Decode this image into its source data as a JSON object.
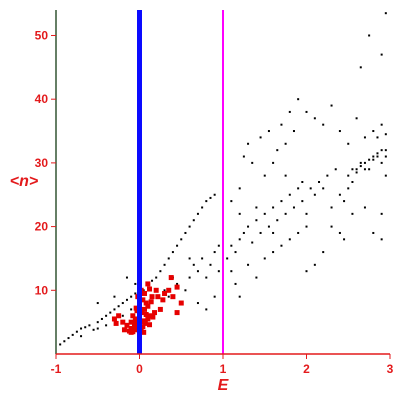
{
  "chart_data": {
    "type": "scatter",
    "title": "",
    "xlabel": "E",
    "ylabel": "<n>",
    "xlim": [
      -1,
      3
    ],
    "ylim": [
      0,
      54
    ],
    "x_ticks": [
      "-1",
      "0",
      "1",
      "2",
      "3"
    ],
    "y_ticks": [
      "10",
      "20",
      "30",
      "40",
      "50"
    ],
    "grid": false,
    "colors": {
      "black_points": "#000000",
      "red_points": "#e60000",
      "line_at_0": "#0a0aff",
      "line_at_1": "#ff00ff",
      "axes": "#e31a1c",
      "y_axis_line": "#335533"
    },
    "vertical_lines": [
      {
        "x": 0,
        "color": "#0a0aff"
      },
      {
        "x": 1,
        "color": "#ff00ff"
      }
    ],
    "series": [
      {
        "marker": "dot",
        "color": "#000000",
        "points": [
          [
            -0.95,
            1.5
          ],
          [
            -0.9,
            2.0
          ],
          [
            -0.85,
            2.5
          ],
          [
            -0.8,
            3.0
          ],
          [
            -0.75,
            3.5
          ],
          [
            -0.7,
            2.8
          ],
          [
            -0.7,
            4.0
          ],
          [
            -0.65,
            4.2
          ],
          [
            -0.6,
            4.5
          ],
          [
            -0.55,
            3.8
          ],
          [
            -0.5,
            5.0
          ],
          [
            -0.5,
            4.0
          ],
          [
            -0.45,
            5.5
          ],
          [
            -0.4,
            6.0
          ],
          [
            -0.4,
            4.5
          ],
          [
            -0.35,
            6.5
          ],
          [
            -0.3,
            5.5
          ],
          [
            -0.3,
            7.0
          ],
          [
            -0.25,
            7.5
          ],
          [
            -0.2,
            6.0
          ],
          [
            -0.2,
            8.0
          ],
          [
            -0.15,
            8.5
          ],
          [
            -0.1,
            9.0
          ],
          [
            -0.1,
            7.0
          ],
          [
            -0.05,
            9.5
          ],
          [
            -0.05,
            11.0
          ],
          [
            0.0,
            10.5
          ],
          [
            -0.3,
            9.0
          ],
          [
            -0.5,
            8.0
          ],
          [
            -0.15,
            12.0
          ],
          [
            0.05,
            10.0
          ],
          [
            0.1,
            11.0
          ],
          [
            0.15,
            11.5
          ],
          [
            0.2,
            12.0
          ],
          [
            0.25,
            13.0
          ],
          [
            0.3,
            14.0
          ],
          [
            0.35,
            15.0
          ],
          [
            0.4,
            16.0
          ],
          [
            0.45,
            17.0
          ],
          [
            0.5,
            18.0
          ],
          [
            0.55,
            19.0
          ],
          [
            0.6,
            20.0
          ],
          [
            0.65,
            21.0
          ],
          [
            0.7,
            22.0
          ],
          [
            0.75,
            23.0
          ],
          [
            0.8,
            24.0
          ],
          [
            0.85,
            24.5
          ],
          [
            0.9,
            25.0
          ],
          [
            0.3,
            10.0
          ],
          [
            0.35,
            9.0
          ],
          [
            0.4,
            12.0
          ],
          [
            0.45,
            11.0
          ],
          [
            0.5,
            8.0
          ],
          [
            0.55,
            10.0
          ],
          [
            0.6,
            12.0
          ],
          [
            0.65,
            14.0
          ],
          [
            0.7,
            13.0
          ],
          [
            0.75,
            15.0
          ],
          [
            0.8,
            12.0
          ],
          [
            0.85,
            14.0
          ],
          [
            0.9,
            16.0
          ],
          [
            0.95,
            17.0
          ],
          [
            1.0,
            18.0
          ],
          [
            0.7,
            8.0
          ],
          [
            0.8,
            7.0
          ],
          [
            0.9,
            9.0
          ],
          [
            0.6,
            15.0
          ],
          [
            0.95,
            13.0
          ],
          [
            1.05,
            15.0
          ],
          [
            1.1,
            17.0
          ],
          [
            1.15,
            16.0
          ],
          [
            1.2,
            18.0
          ],
          [
            1.25,
            19.0
          ],
          [
            1.3,
            20.0
          ],
          [
            1.35,
            17.5
          ],
          [
            1.4,
            21.0
          ],
          [
            1.45,
            19.0
          ],
          [
            1.5,
            22.0
          ],
          [
            1.55,
            20.0
          ],
          [
            1.6,
            23.0
          ],
          [
            1.65,
            21.0
          ],
          [
            1.7,
            24.0
          ],
          [
            1.75,
            22.0
          ],
          [
            1.8,
            25.0
          ],
          [
            1.85,
            23.0
          ],
          [
            1.9,
            26.0
          ],
          [
            1.95,
            24.0
          ],
          [
            2.0,
            22.0
          ],
          [
            1.1,
            13.0
          ],
          [
            1.15,
            11.0
          ],
          [
            1.2,
            9.0
          ],
          [
            1.3,
            14.0
          ],
          [
            1.4,
            12.0
          ],
          [
            1.5,
            15.0
          ],
          [
            1.6,
            16.0
          ],
          [
            1.7,
            17.0
          ],
          [
            1.8,
            18.0
          ],
          [
            1.9,
            19.0
          ],
          [
            2.0,
            20.0
          ],
          [
            2.05,
            26.0
          ],
          [
            2.1,
            25.0
          ],
          [
            2.15,
            27.0
          ],
          [
            2.2,
            26.0
          ],
          [
            2.25,
            28.0
          ],
          [
            2.3,
            23.0
          ],
          [
            2.35,
            29.0
          ],
          [
            2.4,
            25.0
          ],
          [
            2.45,
            24.0
          ],
          [
            2.5,
            26.0
          ],
          [
            2.55,
            27.0
          ],
          [
            2.6,
            29.0
          ],
          [
            2.65,
            30.0
          ],
          [
            2.7,
            29.0
          ],
          [
            2.75,
            30.5
          ],
          [
            2.8,
            31.0
          ],
          [
            2.85,
            31.5
          ],
          [
            2.9,
            30.0
          ],
          [
            2.95,
            32.0
          ],
          [
            2.5,
            28.0
          ],
          [
            2.55,
            29.0
          ],
          [
            2.6,
            28.5
          ],
          [
            2.65,
            29.5
          ],
          [
            2.7,
            30.0
          ],
          [
            2.75,
            29.0
          ],
          [
            2.8,
            30.5
          ],
          [
            2.85,
            31.0
          ],
          [
            2.9,
            32.0
          ],
          [
            2.95,
            31.0
          ],
          [
            2.3,
            20.0
          ],
          [
            2.4,
            19.0
          ],
          [
            2.45,
            18.0
          ],
          [
            2.55,
            22.0
          ],
          [
            2.7,
            23.0
          ],
          [
            2.8,
            19.0
          ],
          [
            2.9,
            22.0
          ],
          [
            2.2,
            16.0
          ],
          [
            2.1,
            14.0
          ],
          [
            2.0,
            13.0
          ],
          [
            1.0,
            30.0
          ],
          [
            1.1,
            24.0
          ],
          [
            1.2,
            26.0
          ],
          [
            1.25,
            31.0
          ],
          [
            1.3,
            33.0
          ],
          [
            1.45,
            34.0
          ],
          [
            1.5,
            28.0
          ],
          [
            1.55,
            35.0
          ],
          [
            1.6,
            30.0
          ],
          [
            1.65,
            32.0
          ],
          [
            1.7,
            36.0
          ],
          [
            1.75,
            33.0
          ],
          [
            1.8,
            38.0
          ],
          [
            1.85,
            35.0
          ],
          [
            1.9,
            40.0
          ],
          [
            2.0,
            38.0
          ],
          [
            2.1,
            37.0
          ],
          [
            2.2,
            36.0
          ],
          [
            2.3,
            39.0
          ],
          [
            2.4,
            35.0
          ],
          [
            2.5,
            33.0
          ],
          [
            2.6,
            37.0
          ],
          [
            2.7,
            34.0
          ],
          [
            2.8,
            35.0
          ],
          [
            2.9,
            36.0
          ],
          [
            2.95,
            28.0
          ],
          [
            1.4,
            23.0
          ],
          [
            1.6,
            19.0
          ],
          [
            1.0,
            20.0
          ],
          [
            1.2,
            22.0
          ],
          [
            2.65,
            45.0
          ],
          [
            2.75,
            50.0
          ],
          [
            2.9,
            47.0
          ],
          [
            2.95,
            53.5
          ],
          [
            2.85,
            34.0
          ],
          [
            2.95,
            34.5
          ],
          [
            2.9,
            18.0
          ],
          [
            1.35,
            30.0
          ],
          [
            1.75,
            28.0
          ],
          [
            1.95,
            27.0
          ]
        ]
      },
      {
        "marker": "square",
        "color": "#e60000",
        "points": [
          [
            -0.1,
            4.0
          ],
          [
            -0.08,
            3.5
          ],
          [
            -0.06,
            4.2
          ],
          [
            -0.04,
            3.8
          ],
          [
            -0.02,
            4.5
          ],
          [
            0.0,
            4.0
          ],
          [
            0.02,
            3.6
          ],
          [
            0.04,
            4.3
          ],
          [
            -0.12,
            3.6
          ],
          [
            -0.1,
            5.0
          ],
          [
            -0.05,
            5.5
          ],
          [
            0.0,
            5.8
          ],
          [
            0.05,
            5.2
          ],
          [
            -0.08,
            6.0
          ],
          [
            0.03,
            6.5
          ],
          [
            0.06,
            7.0
          ],
          [
            0.0,
            7.5
          ],
          [
            -0.03,
            6.8
          ],
          [
            0.08,
            6.2
          ],
          [
            0.1,
            5.5
          ],
          [
            0.12,
            6.0
          ],
          [
            0.0,
            8.0
          ],
          [
            0.04,
            8.5
          ],
          [
            -0.02,
            9.0
          ],
          [
            0.06,
            9.5
          ],
          [
            0.02,
            10.0
          ],
          [
            0.08,
            8.0
          ],
          [
            0.1,
            7.5
          ],
          [
            0.14,
            8.2
          ],
          [
            0.0,
            9.8
          ],
          [
            -0.15,
            4.5
          ],
          [
            -0.18,
            3.8
          ],
          [
            -0.2,
            5.0
          ],
          [
            -0.25,
            6.0
          ],
          [
            0.16,
            5.8
          ],
          [
            0.18,
            6.5
          ],
          [
            0.15,
            9.0
          ],
          [
            0.12,
            10.2
          ],
          [
            0.2,
            10.0
          ],
          [
            0.22,
            9.0
          ],
          [
            0.25,
            7.0
          ],
          [
            0.28,
            8.5
          ],
          [
            0.3,
            9.5
          ],
          [
            0.35,
            10.0
          ],
          [
            0.4,
            9.0
          ],
          [
            0.45,
            10.5
          ],
          [
            0.5,
            8.0
          ],
          [
            0.45,
            6.5
          ],
          [
            -0.3,
            5.5
          ],
          [
            -0.28,
            4.8
          ],
          [
            0.38,
            12.0
          ],
          [
            0.1,
            11.0
          ],
          [
            0.05,
            3.4
          ],
          [
            -0.1,
            3.4
          ],
          [
            0.0,
            3.5
          ],
          [
            0.07,
            4.8
          ],
          [
            0.12,
            4.6
          ],
          [
            -0.04,
            7.2
          ],
          [
            0.02,
            5.1
          ],
          [
            -0.06,
            4.9
          ]
        ]
      }
    ]
  }
}
